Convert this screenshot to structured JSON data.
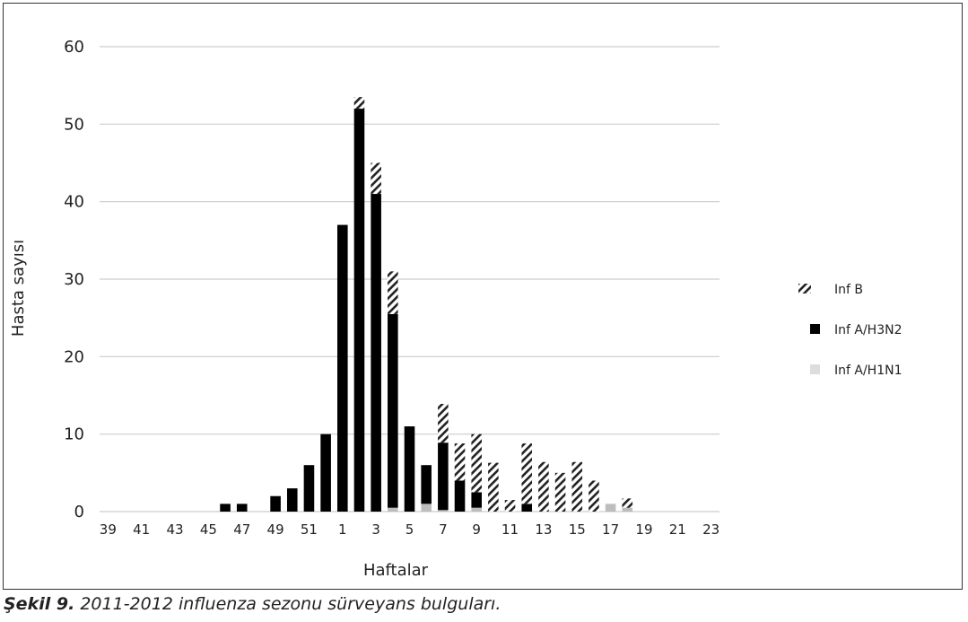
{
  "caption": {
    "label": "Şekil 9.",
    "text": "2011-2012 influenza sezonu sürveyans bulguları."
  },
  "colors": {
    "inf_b": "#222222",
    "h3n2": "#000000",
    "h1n1": "#bdbdbd",
    "grid": "#cccccc"
  },
  "chart_data": {
    "type": "bar",
    "stacked": true,
    "xlabel": "Haftalar",
    "ylabel": "Hasta sayısı",
    "ylim": [
      0,
      60
    ],
    "yticks": [
      0,
      10,
      20,
      30,
      40,
      50,
      60
    ],
    "grid": true,
    "legend_position": "right",
    "categories": [
      "39",
      "40",
      "41",
      "42",
      "43",
      "44",
      "45",
      "46",
      "47",
      "48",
      "49",
      "50",
      "51",
      "52",
      "1",
      "2",
      "3",
      "4",
      "5",
      "6",
      "7",
      "8",
      "9",
      "10",
      "11",
      "12",
      "13",
      "14",
      "15",
      "16",
      "17",
      "18",
      "19",
      "20",
      "21",
      "22",
      "23"
    ],
    "tick_labels": [
      "39",
      "41",
      "43",
      "45",
      "47",
      "49",
      "51",
      "1",
      "3",
      "5",
      "7",
      "9",
      "11",
      "13",
      "15",
      "17",
      "19",
      "21",
      "23"
    ],
    "series": [
      {
        "name": "Inf A/H1N1",
        "pattern": "solid-light",
        "values": [
          0,
          0,
          0,
          0,
          0,
          0,
          0,
          0,
          0,
          0,
          0,
          0,
          0,
          0,
          0,
          0,
          0,
          0.5,
          0,
          1,
          0.2,
          0,
          0.5,
          0,
          0,
          0,
          0,
          0,
          0,
          0,
          1,
          0.5,
          0,
          0,
          0,
          0,
          0
        ]
      },
      {
        "name": "Inf A/H3N2",
        "pattern": "solid-dark",
        "values": [
          0,
          0,
          0,
          0,
          0,
          0,
          0,
          1,
          1,
          0,
          2,
          3,
          6,
          10,
          37,
          52,
          41,
          25,
          11,
          5,
          8.7,
          4,
          2,
          0,
          0,
          1,
          0,
          0,
          0,
          0,
          0,
          0,
          0,
          0,
          0,
          0,
          0
        ]
      },
      {
        "name": "Inf B",
        "pattern": "hatched",
        "values": [
          0,
          0,
          0,
          0,
          0,
          0,
          0,
          0,
          0,
          0,
          0,
          0,
          0,
          0,
          0,
          1.5,
          4,
          5.5,
          0,
          0,
          5,
          4.8,
          7.5,
          6.3,
          1.5,
          7.8,
          6.4,
          5,
          6.4,
          4,
          0,
          1.2,
          0,
          0,
          0,
          0,
          0
        ]
      }
    ]
  }
}
